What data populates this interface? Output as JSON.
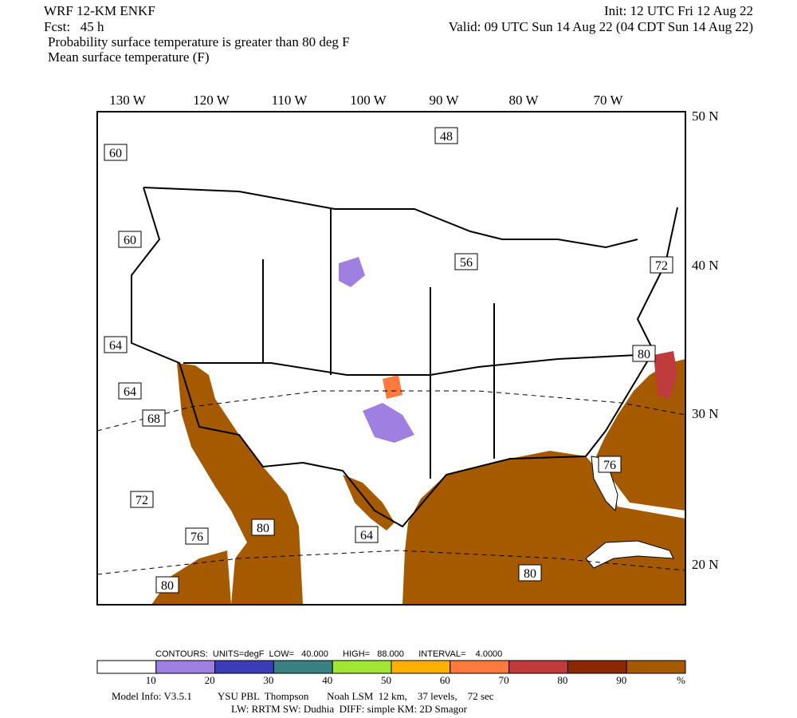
{
  "header": {
    "model": "WRF 12-KM ENKF",
    "init": "Init: 12 UTC Fri 12 Aug 22",
    "fcst": "Fcst:   45 h",
    "valid": "Valid: 09 UTC Sun 14 Aug 22 (04 CDT Sun 14 Aug 22)",
    "line1": "Probability surface temperature is greater than 80 deg F",
    "line2": "Mean surface temperature (F)"
  },
  "map": {
    "lon_labels": [
      "130 W",
      "120 W",
      "110 W",
      "100 W",
      "90 W",
      "80 W",
      "70 W"
    ],
    "lat_labels": [
      "50 N",
      "40 N",
      "30 N",
      "20 N"
    ],
    "contour_labels": [
      "48",
      "60",
      "60",
      "56",
      "72",
      "64",
      "80",
      "64",
      "68",
      "76",
      "72",
      "80",
      "64",
      "76",
      "80",
      "80"
    ]
  },
  "legend": {
    "contours": "CONTOURS:  UNITS=degF  LOW=   40.000      HIGH=   88.000      INTERVAL=    4.0000",
    "colors": [
      "#ffffff",
      "#9f7fe0",
      "#3a3cb8",
      "#3a8080",
      "#a0e632",
      "#ffb000",
      "#ff7a3c",
      "#c03c3c",
      "#8c2800",
      "#a65a00"
    ],
    "labels": [
      "10",
      "20",
      "30",
      "40",
      "50",
      "60",
      "70",
      "80",
      "90",
      "%"
    ]
  },
  "footer": {
    "line1": "Model Info: V3.5.1          YSU PBL  Thompson       Noah LSM  12 km,    37 levels,    72 sec",
    "line2": "LW: RRTM SW: Dudhia  DIFF: simple KM: 2D Smagor"
  }
}
